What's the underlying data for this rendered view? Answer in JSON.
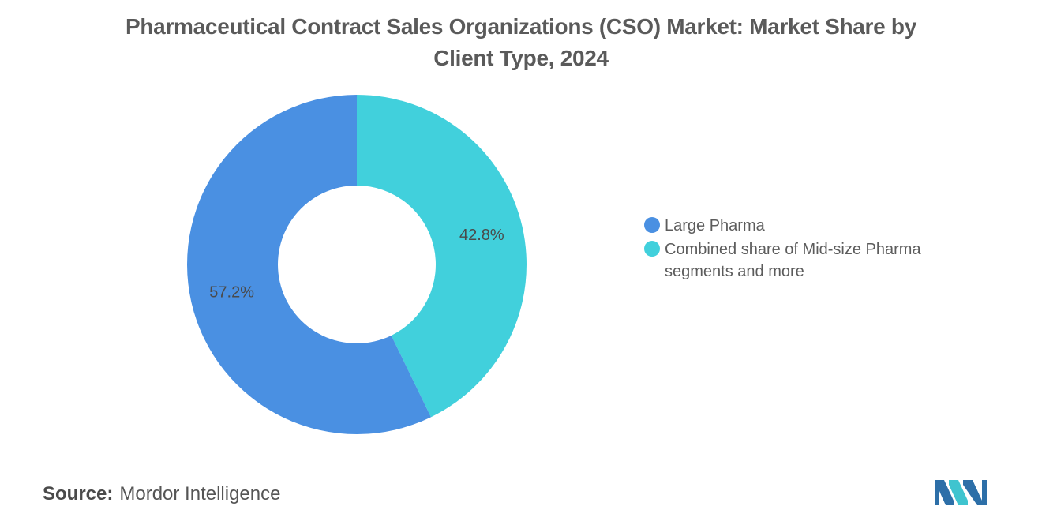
{
  "chart_data": {
    "type": "pie",
    "title_lines": [
      "Pharmaceutical Contract Sales Organizations (CSO) Market: Market Share by",
      "Client Type, 2024"
    ],
    "donut": true,
    "legend_position": "right",
    "slices": [
      {
        "name": "Combined share of Mid-size Pharma segments and more",
        "value": 42.8,
        "label": "42.8%",
        "color": "#41d0dc"
      },
      {
        "name": "Large Pharma",
        "value": 57.2,
        "label": "57.2%",
        "color": "#4a90e2"
      }
    ],
    "legend": [
      {
        "label": "Large Pharma",
        "color": "#4a90e2"
      },
      {
        "label": "Combined share of Mid-size Pharma segments and more",
        "color": "#41d0dc"
      }
    ]
  },
  "source": {
    "key": "Source:",
    "value": "Mordor Intelligence"
  },
  "logo": {
    "icon": "mordor-intelligence-logo-icon",
    "colors": [
      "#2d6fa8",
      "#3fc4cf"
    ]
  }
}
